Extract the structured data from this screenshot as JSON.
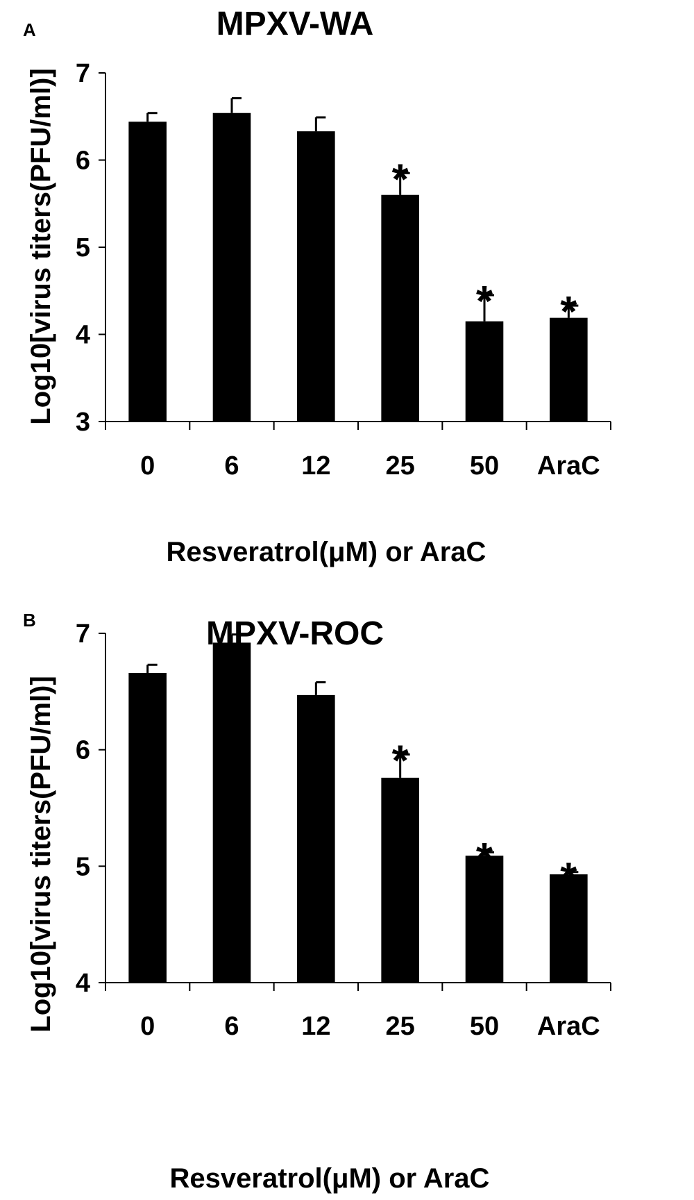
{
  "chart_data": [
    {
      "type": "bar",
      "panel": "A",
      "title": "MPXV-WA",
      "xlabel": "Resveratrol(μM) or AraC",
      "ylabel": "Log10[virus titers(PFU/ml)]",
      "ylim": [
        3,
        7
      ],
      "yticks": [
        "3",
        "4",
        "5",
        "6",
        "7"
      ],
      "categories": [
        "0",
        "6",
        "12",
        "25",
        "50",
        "AraC"
      ],
      "values": [
        6.44,
        6.54,
        6.33,
        5.6,
        4.15,
        4.19
      ],
      "errors": [
        0.1,
        0.17,
        0.16,
        0.25,
        0.3,
        0.14
      ],
      "significance": [
        "",
        "",
        "",
        "*",
        "*",
        "*"
      ],
      "grid": false,
      "bar_color": "#000000"
    },
    {
      "type": "bar",
      "panel": "B",
      "title": "MPXV-ROC",
      "xlabel": "Resveratrol(μM) or AraC",
      "ylabel": "Log10[virus titers(PFU/ml)]",
      "ylim": [
        4,
        7
      ],
      "yticks": [
        "4",
        "5",
        "6",
        "7"
      ],
      "categories": [
        "0",
        "6",
        "12",
        "25",
        "50",
        "AraC"
      ],
      "values": [
        6.66,
        6.92,
        6.47,
        5.76,
        5.09,
        4.93
      ],
      "errors": [
        0.07,
        0.07,
        0.11,
        0.2,
        0.03,
        0.02
      ],
      "significance": [
        "",
        "",
        "",
        "*",
        "*",
        "*"
      ],
      "grid": false,
      "bar_color": "#000000"
    }
  ]
}
